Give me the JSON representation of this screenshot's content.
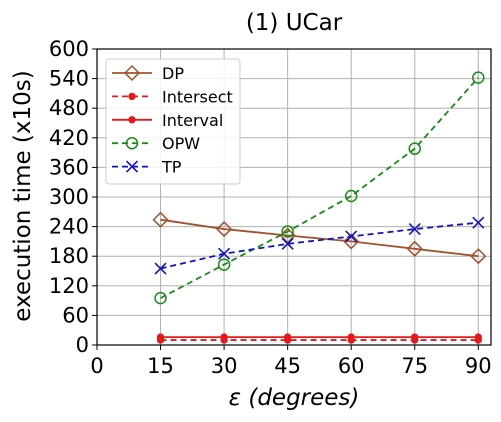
{
  "chart_data": {
    "type": "line",
    "title": "(1) UCar",
    "xlabel_symbol": "ε",
    "xlabel_text": "(degrees)",
    "ylabel": "execution time (x10s)",
    "x": [
      15,
      30,
      45,
      60,
      75,
      90
    ],
    "xlim": [
      0,
      93
    ],
    "ylim": [
      0,
      600
    ],
    "xticks": [
      "0",
      "15",
      "30",
      "45",
      "60",
      "75",
      "90"
    ],
    "yticks": [
      "0",
      "60",
      "120",
      "180",
      "240",
      "300",
      "360",
      "420",
      "480",
      "540",
      "600"
    ],
    "grid": true,
    "legend_position": "top-left",
    "series": [
      {
        "name": "DP",
        "values": [
          254,
          235,
          222,
          210,
          195,
          180
        ],
        "color": "#a0522d",
        "dash": "solid",
        "marker": "diamond-open"
      },
      {
        "name": "Intersect",
        "values": [
          10,
          10,
          10,
          10,
          10,
          10
        ],
        "color": "#e31a1c",
        "dash": "dashed",
        "marker": "dot"
      },
      {
        "name": "Interval",
        "values": [
          16,
          16,
          16,
          16,
          16,
          16
        ],
        "color": "#e31a1c",
        "dash": "solid",
        "marker": "dot"
      },
      {
        "name": "OPW",
        "values": [
          95,
          163,
          230,
          302,
          398,
          542
        ],
        "color": "#1a8a1a",
        "dash": "dashed",
        "marker": "circle-open"
      },
      {
        "name": "TP",
        "values": [
          155,
          185,
          205,
          220,
          235,
          248
        ],
        "color": "#1515b5",
        "dash": "dashed",
        "marker": "x"
      }
    ]
  }
}
